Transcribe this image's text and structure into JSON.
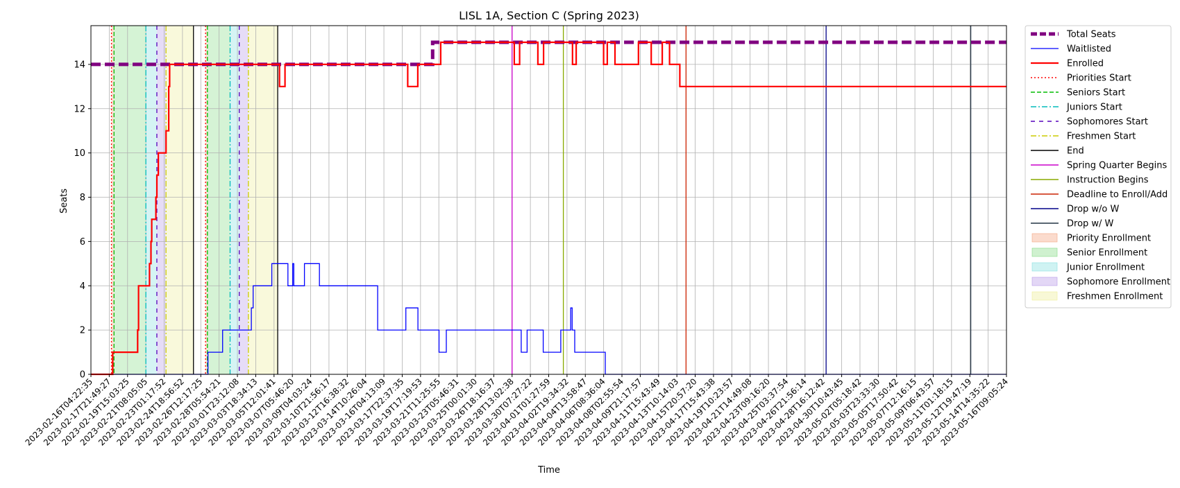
{
  "chart_data": {
    "type": "line",
    "title": "LISL 1A, Section C (Spring 2023)",
    "xlabel": "Time",
    "ylabel": "Seats",
    "ylim": [
      0,
      15.75
    ],
    "yticks": [
      0,
      2,
      4,
      6,
      8,
      10,
      12,
      14
    ],
    "grid": true,
    "legend_position": "outside-right",
    "x_start": "2023-02-16T04:22:35",
    "x_end": "2023-05-16T09:05:24",
    "x_tick_labels": [
      "2023-02-16T04:22:35",
      "2023-02-17T21:49:27",
      "2023-02-19T15:03:25",
      "2023-02-21T08:05:05",
      "2023-02-23T01:17:52",
      "2023-02-24T18:56:52",
      "2023-02-26T12:17:25",
      "2023-02-28T05:54:21",
      "2023-03-01T23:12:08",
      "2023-03-03T18:34:13",
      "2023-03-05T12:01:41",
      "2023-03-07T05:46:20",
      "2023-03-09T04:03:24",
      "2023-03-10T21:56:17",
      "2023-03-12T16:38:32",
      "2023-03-14T10:26:04",
      "2023-03-16T04:13:09",
      "2023-03-17T22:37:35",
      "2023-03-19T17:19:53",
      "2023-03-21T11:25:55",
      "2023-03-23T05:46:31",
      "2023-03-25T00:01:30",
      "2023-03-26T18:16:37",
      "2023-03-28T13:02:38",
      "2023-03-30T07:27:22",
      "2023-04-01T01:27:59",
      "2023-04-02T19:34:32",
      "2023-04-04T13:58:47",
      "2023-04-06T08:36:04",
      "2023-04-08T02:55:54",
      "2023-04-09T21:17:57",
      "2023-04-11T15:43:49",
      "2023-04-13T10:14:03",
      "2023-04-15T20:57:20",
      "2023-04-17T15:43:38",
      "2023-04-19T10:23:57",
      "2023-04-21T14:49:08",
      "2023-04-23T09:16:20",
      "2023-04-25T03:37:54",
      "2023-04-26T21:56:14",
      "2023-04-28T16:12:42",
      "2023-04-30T10:43:45",
      "2023-05-02T05:18:42",
      "2023-05-03T23:33:30",
      "2023-05-05T17:50:42",
      "2023-05-07T12:16:15",
      "2023-05-09T06:43:57",
      "2023-05-11T01:18:15",
      "2023-05-12T19:47:19",
      "2023-05-14T14:35:22",
      "2023-05-16T09:05:24"
    ],
    "series": [
      {
        "name": "Total Seats",
        "color": "#800080",
        "points": [
          [
            0,
            14
          ],
          [
            18.66,
            14
          ],
          [
            18.66,
            15
          ],
          [
            50,
            15
          ]
        ]
      },
      {
        "name": "Waitlisted",
        "color": "#0000ff",
        "points": [
          [
            0,
            0
          ],
          [
            6.39,
            0
          ],
          [
            6.39,
            1
          ],
          [
            7.19,
            1
          ],
          [
            7.19,
            2
          ],
          [
            8.76,
            2
          ],
          [
            8.76,
            3
          ],
          [
            8.86,
            3
          ],
          [
            8.86,
            4
          ],
          [
            9.88,
            4
          ],
          [
            9.88,
            5
          ],
          [
            10.76,
            5
          ],
          [
            10.76,
            4
          ],
          [
            11.02,
            4
          ],
          [
            11.02,
            5
          ],
          [
            11.08,
            5
          ],
          [
            11.08,
            4
          ],
          [
            11.66,
            4
          ],
          [
            11.66,
            5
          ],
          [
            12.48,
            5
          ],
          [
            12.48,
            4
          ],
          [
            15.66,
            4
          ],
          [
            15.66,
            2
          ],
          [
            17.2,
            2
          ],
          [
            17.2,
            3
          ],
          [
            17.86,
            3
          ],
          [
            17.86,
            2
          ],
          [
            19.01,
            2
          ],
          [
            19.01,
            1
          ],
          [
            19.41,
            1
          ],
          [
            19.41,
            2
          ],
          [
            23.5,
            2
          ],
          [
            23.5,
            1
          ],
          [
            23.82,
            1
          ],
          [
            23.82,
            2
          ],
          [
            24.7,
            2
          ],
          [
            24.7,
            1
          ],
          [
            25.66,
            1
          ],
          [
            25.66,
            2
          ],
          [
            26.2,
            2
          ],
          [
            26.2,
            3
          ],
          [
            26.28,
            3
          ],
          [
            26.28,
            2
          ],
          [
            26.42,
            2
          ],
          [
            26.42,
            1
          ],
          [
            28.09,
            1
          ],
          [
            28.09,
            0
          ],
          [
            50,
            0
          ]
        ]
      },
      {
        "name": "Enrolled",
        "color": "#ff0000",
        "points": [
          [
            0,
            0
          ],
          [
            1.19,
            0
          ],
          [
            1.19,
            1
          ],
          [
            2.55,
            1
          ],
          [
            2.55,
            2
          ],
          [
            2.6,
            2
          ],
          [
            2.6,
            4
          ],
          [
            3.2,
            4
          ],
          [
            3.2,
            5
          ],
          [
            3.28,
            5
          ],
          [
            3.28,
            6
          ],
          [
            3.32,
            6
          ],
          [
            3.32,
            7
          ],
          [
            3.55,
            7
          ],
          [
            3.55,
            8
          ],
          [
            3.6,
            8
          ],
          [
            3.6,
            9
          ],
          [
            3.68,
            9
          ],
          [
            3.68,
            10
          ],
          [
            4.1,
            10
          ],
          [
            4.1,
            11
          ],
          [
            4.25,
            11
          ],
          [
            4.25,
            13
          ],
          [
            4.3,
            13
          ],
          [
            4.3,
            14
          ],
          [
            10.3,
            14
          ],
          [
            10.3,
            13
          ],
          [
            10.6,
            13
          ],
          [
            10.6,
            14
          ],
          [
            17.3,
            14
          ],
          [
            17.3,
            13
          ],
          [
            17.85,
            13
          ],
          [
            17.85,
            14
          ],
          [
            19.1,
            14
          ],
          [
            19.1,
            15
          ],
          [
            23.12,
            15
          ],
          [
            23.12,
            14
          ],
          [
            23.41,
            14
          ],
          [
            23.41,
            15
          ],
          [
            24.41,
            15
          ],
          [
            24.41,
            14
          ],
          [
            24.72,
            14
          ],
          [
            24.72,
            15
          ],
          [
            26.3,
            15
          ],
          [
            26.3,
            14
          ],
          [
            26.5,
            14
          ],
          [
            26.5,
            15
          ],
          [
            28.0,
            15
          ],
          [
            28.0,
            14
          ],
          [
            28.2,
            14
          ],
          [
            28.2,
            15
          ],
          [
            28.62,
            15
          ],
          [
            28.62,
            14
          ],
          [
            29.9,
            14
          ],
          [
            29.9,
            15
          ],
          [
            30.6,
            15
          ],
          [
            30.6,
            14
          ],
          [
            31.2,
            14
          ],
          [
            31.2,
            15
          ],
          [
            31.6,
            15
          ],
          [
            31.6,
            14
          ],
          [
            32.16,
            14
          ],
          [
            32.16,
            13
          ],
          [
            50,
            13
          ]
        ]
      }
    ],
    "event_lines": [
      {
        "name": "Priorities Start",
        "color": "#ff0000",
        "dash": "2,3",
        "x": [
          1.12,
          6.26
        ]
      },
      {
        "name": "Seniors Start",
        "color": "#00bb00",
        "dash": "6,3",
        "x": [
          1.26,
          6.36
        ]
      },
      {
        "name": "Juniors Start",
        "color": "#00bbbb",
        "dash": "8,3,2,3",
        "x": [
          3.0,
          7.6
        ]
      },
      {
        "name": "Sophomores Start",
        "color": "#5500bb",
        "dash": "6,6",
        "x": [
          3.6,
          8.1
        ]
      },
      {
        "name": "Freshmen Start",
        "color": "#cccc00",
        "dash": "8,3,2,3",
        "x": [
          4.1,
          8.6
        ]
      },
      {
        "name": "End",
        "color": "#000000",
        "dash": "",
        "x": [
          5.6,
          10.2
        ]
      },
      {
        "name": "Spring Quarter Begins",
        "color": "#cc00cc",
        "dash": "",
        "x": [
          23.0
        ]
      },
      {
        "name": "Instruction Begins",
        "color": "#88aa00",
        "dash": "",
        "x": [
          25.8
        ]
      },
      {
        "name": "Deadline to Enroll/Add",
        "color": "#cc2200",
        "dash": "",
        "x": [
          32.5
        ]
      },
      {
        "name": "Drop w/o W",
        "color": "#000088",
        "dash": "",
        "x": [
          40.15
        ]
      },
      {
        "name": "Drop w/ W",
        "color": "#223344",
        "dash": "",
        "x": [
          48.05
        ]
      }
    ],
    "shaded_regions": [
      {
        "name": "Priority Enrollment",
        "color": "#f4a582",
        "ranges": [
          [
            1.12,
            1.26
          ],
          [
            6.26,
            6.36
          ]
        ]
      },
      {
        "name": "Senior Enrollment",
        "color": "#88dd88",
        "ranges": [
          [
            1.26,
            3.0
          ],
          [
            6.36,
            7.6
          ]
        ]
      },
      {
        "name": "Junior Enrollment",
        "color": "#88e0e0",
        "ranges": [
          [
            3.0,
            3.6
          ],
          [
            7.6,
            8.1
          ]
        ]
      },
      {
        "name": "Sophomore Enrollment",
        "color": "#b89ce8",
        "ranges": [
          [
            3.6,
            4.1
          ],
          [
            8.1,
            8.6
          ]
        ]
      },
      {
        "name": "Freshmen Enrollment",
        "color": "#eeee99",
        "ranges": [
          [
            4.1,
            5.6
          ],
          [
            8.6,
            10.2
          ]
        ]
      }
    ]
  }
}
